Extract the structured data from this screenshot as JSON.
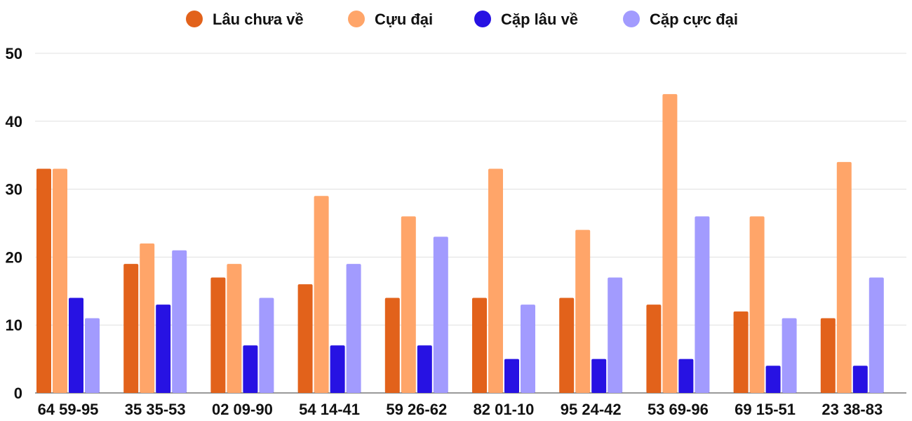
{
  "chart_data": {
    "type": "bar",
    "categories": [
      "64 59-95",
      "35 35-53",
      "02 09-90",
      "54 14-41",
      "59 26-62",
      "82 01-10",
      "95 24-42",
      "53 69-96",
      "69 15-51",
      "23 38-83"
    ],
    "series": [
      {
        "name": "Lâu chưa về",
        "color": "#e2621b",
        "values": [
          33,
          19,
          17,
          16,
          14,
          14,
          14,
          13,
          12,
          11
        ]
      },
      {
        "name": "Cựu đại",
        "color": "#ffa569",
        "values": [
          33,
          22,
          19,
          29,
          26,
          33,
          24,
          44,
          26,
          34
        ]
      },
      {
        "name": "Cặp lâu về",
        "color": "#2712e3",
        "values": [
          14,
          13,
          7,
          7,
          7,
          5,
          5,
          5,
          4,
          4
        ]
      },
      {
        "name": "Cặp cực đại",
        "color": "#a29bfe",
        "values": [
          11,
          21,
          14,
          19,
          23,
          13,
          17,
          26,
          11,
          17
        ]
      }
    ],
    "yticks": [
      "0",
      "10",
      "20",
      "30",
      "40",
      "50"
    ],
    "ylim": [
      0,
      50
    ],
    "grid": true,
    "legend": "top"
  }
}
